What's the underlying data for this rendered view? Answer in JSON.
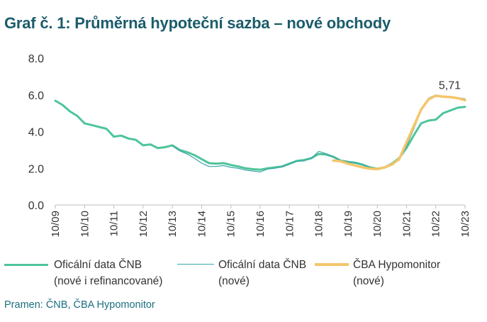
{
  "title": "Graf č. 1: Průměrná hypoteční sazba – nové obchody",
  "source": "Pramen: ČNB, ČBA Hypomonitor",
  "colors": {
    "title": "#1b5c6b",
    "series_a": "#4ec49a",
    "series_b": "#3aa5a8",
    "series_c": "#f5c56a",
    "axis": "#bfbfbf",
    "text": "#333333",
    "source": "#1b6f80"
  },
  "legend": [
    {
      "line1": "Oficální data ČNB",
      "line2": "(nové i refinancované)"
    },
    {
      "line1": "Oficální data ČNB",
      "line2": "(nové)"
    },
    {
      "line1": "ČBA Hypomonitor",
      "line2": "(nové)"
    }
  ],
  "chart_data": {
    "type": "line",
    "ylim": [
      0,
      8
    ],
    "xlim": [
      "2009-10",
      "2023-10"
    ],
    "y_ticks": [
      "0.0",
      "2.0",
      "4.0",
      "6.0",
      "8.0"
    ],
    "x_ticks": [
      "10/09",
      "10/10",
      "10/11",
      "10/12",
      "10/13",
      "10/14",
      "10/15",
      "10/16",
      "10/17",
      "10/18",
      "10/19",
      "10/20",
      "10/21",
      "10/22",
      "10/23"
    ],
    "grid": false,
    "legend_position": "bottom",
    "annotations": [
      {
        "text": "5,71",
        "x": "2023-10",
        "y": 5.71
      }
    ],
    "series": [
      {
        "name": "Oficální data ČNB (nové i refinancované)",
        "points": [
          [
            "2009-10",
            5.68
          ],
          [
            "2010-01",
            5.45
          ],
          [
            "2010-04",
            5.1
          ],
          [
            "2010-07",
            4.85
          ],
          [
            "2010-10",
            4.45
          ],
          [
            "2011-01",
            4.35
          ],
          [
            "2011-04",
            4.25
          ],
          [
            "2011-07",
            4.15
          ],
          [
            "2011-10",
            3.72
          ],
          [
            "2012-01",
            3.78
          ],
          [
            "2012-04",
            3.62
          ],
          [
            "2012-07",
            3.55
          ],
          [
            "2012-10",
            3.25
          ],
          [
            "2013-01",
            3.3
          ],
          [
            "2013-04",
            3.1
          ],
          [
            "2013-07",
            3.15
          ],
          [
            "2013-10",
            3.25
          ],
          [
            "2014-01",
            3.0
          ],
          [
            "2014-04",
            2.88
          ],
          [
            "2014-07",
            2.72
          ],
          [
            "2014-10",
            2.5
          ],
          [
            "2015-01",
            2.28
          ],
          [
            "2015-04",
            2.25
          ],
          [
            "2015-07",
            2.28
          ],
          [
            "2015-10",
            2.18
          ],
          [
            "2016-01",
            2.1
          ],
          [
            "2016-04",
            2.0
          ],
          [
            "2016-07",
            1.95
          ],
          [
            "2016-10",
            1.92
          ],
          [
            "2017-01",
            2.0
          ],
          [
            "2017-04",
            2.05
          ],
          [
            "2017-07",
            2.1
          ],
          [
            "2017-10",
            2.25
          ],
          [
            "2018-01",
            2.4
          ],
          [
            "2018-04",
            2.45
          ],
          [
            "2018-07",
            2.55
          ],
          [
            "2018-10",
            2.78
          ],
          [
            "2019-01",
            2.75
          ],
          [
            "2019-04",
            2.62
          ],
          [
            "2019-07",
            2.42
          ],
          [
            "2019-10",
            2.35
          ],
          [
            "2020-01",
            2.3
          ],
          [
            "2020-04",
            2.2
          ],
          [
            "2020-07",
            2.05
          ],
          [
            "2020-10",
            1.98
          ],
          [
            "2021-01",
            2.05
          ],
          [
            "2021-04",
            2.25
          ],
          [
            "2021-07",
            2.55
          ],
          [
            "2021-10",
            3.1
          ],
          [
            "2022-01",
            3.8
          ],
          [
            "2022-04",
            4.45
          ],
          [
            "2022-07",
            4.6
          ],
          [
            "2022-10",
            4.65
          ],
          [
            "2023-01",
            5.0
          ],
          [
            "2023-04",
            5.15
          ],
          [
            "2023-07",
            5.3
          ],
          [
            "2023-10",
            5.35
          ]
        ]
      },
      {
        "name": "Oficální data ČNB (nové)",
        "points": [
          [
            "2013-10",
            3.22
          ],
          [
            "2014-01",
            2.95
          ],
          [
            "2014-04",
            2.78
          ],
          [
            "2014-07",
            2.55
          ],
          [
            "2014-10",
            2.28
          ],
          [
            "2015-01",
            2.1
          ],
          [
            "2015-04",
            2.1
          ],
          [
            "2015-07",
            2.15
          ],
          [
            "2015-10",
            2.05
          ],
          [
            "2016-01",
            2.0
          ],
          [
            "2016-04",
            1.9
          ],
          [
            "2016-07",
            1.85
          ],
          [
            "2016-10",
            1.8
          ],
          [
            "2017-01",
            1.95
          ],
          [
            "2017-04",
            2.0
          ],
          [
            "2017-07",
            2.08
          ],
          [
            "2017-10",
            2.25
          ],
          [
            "2018-01",
            2.38
          ],
          [
            "2018-04",
            2.4
          ],
          [
            "2018-07",
            2.55
          ],
          [
            "2018-10",
            2.92
          ],
          [
            "2019-01",
            2.8
          ],
          [
            "2019-04",
            2.65
          ],
          [
            "2019-07",
            2.42
          ],
          [
            "2019-10",
            2.35
          ],
          [
            "2020-01",
            2.3
          ],
          [
            "2020-04",
            2.18
          ],
          [
            "2020-07",
            2.05
          ],
          [
            "2020-10",
            1.98
          ],
          [
            "2021-01",
            2.0
          ],
          [
            "2021-04",
            2.2
          ],
          [
            "2021-07",
            2.5
          ],
          [
            "2021-10",
            3.2
          ],
          [
            "2022-01",
            4.15
          ],
          [
            "2022-04",
            5.15
          ],
          [
            "2022-07",
            5.82
          ],
          [
            "2022-10",
            6.0
          ],
          [
            "2023-01",
            5.92
          ],
          [
            "2023-04",
            5.88
          ],
          [
            "2023-07",
            5.85
          ],
          [
            "2023-10",
            5.78
          ]
        ]
      },
      {
        "name": "ČBA Hypomonitor (nové)",
        "points": [
          [
            "2019-04",
            2.42
          ],
          [
            "2019-07",
            2.38
          ],
          [
            "2019-10",
            2.25
          ],
          [
            "2020-01",
            2.15
          ],
          [
            "2020-04",
            2.05
          ],
          [
            "2020-07",
            1.98
          ],
          [
            "2020-10",
            1.95
          ],
          [
            "2021-01",
            2.05
          ],
          [
            "2021-04",
            2.2
          ],
          [
            "2021-07",
            2.5
          ],
          [
            "2021-10",
            3.4
          ],
          [
            "2022-01",
            4.3
          ],
          [
            "2022-04",
            5.2
          ],
          [
            "2022-07",
            5.75
          ],
          [
            "2022-10",
            5.95
          ],
          [
            "2023-01",
            5.9
          ],
          [
            "2023-04",
            5.88
          ],
          [
            "2023-07",
            5.82
          ],
          [
            "2023-10",
            5.71
          ]
        ]
      }
    ]
  }
}
